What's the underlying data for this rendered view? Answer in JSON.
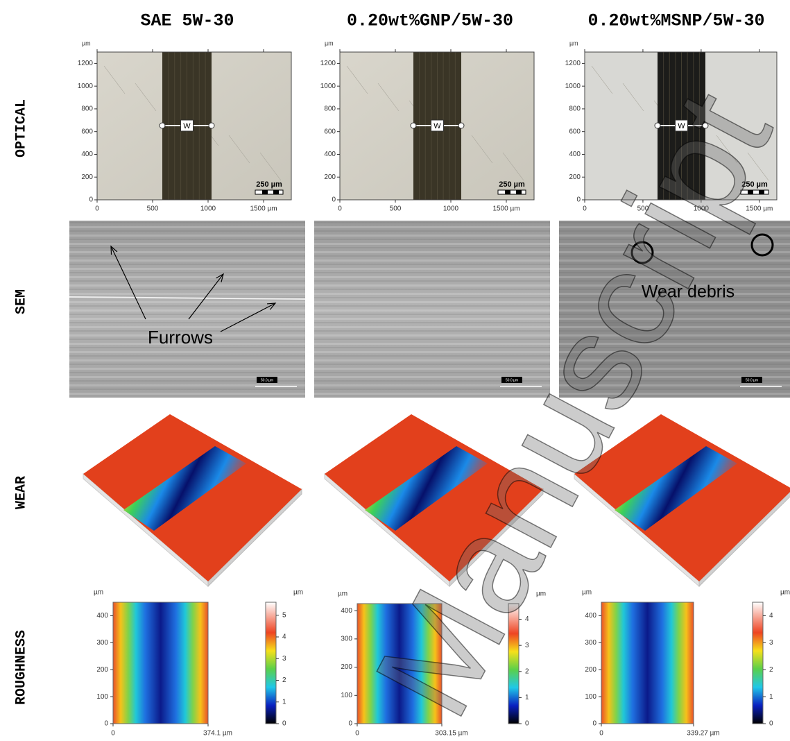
{
  "columns": [
    "SAE 5W-30",
    "0.20wt%GNP/5W-30",
    "0.20wt%MSNP/5W-30"
  ],
  "rows": [
    "OPTICAL",
    "SEM",
    "WEAR",
    "ROUGHNESS"
  ],
  "optical": [
    {
      "unit": "µm",
      "xlim": [
        0,
        1750
      ],
      "ylim": [
        0,
        1300
      ],
      "xticks": [
        0,
        500,
        1000,
        {
          "value": 1500,
          "label": "1500 µm"
        }
      ],
      "yticks": [
        0,
        200,
        400,
        600,
        800,
        1000,
        1200
      ],
      "marker": "W",
      "scale_bar": "250 µm"
    },
    {
      "unit": "µm",
      "xlim": [
        0,
        1750
      ],
      "ylim": [
        0,
        1300
      ],
      "xticks": [
        0,
        500,
        1000,
        {
          "value": 1500,
          "label": "1500 µm"
        }
      ],
      "yticks": [
        0,
        200,
        400,
        600,
        800,
        1000,
        1200
      ],
      "marker": "W",
      "scale_bar": "250 µm"
    },
    {
      "unit": "µm",
      "xlim": [
        0,
        1650
      ],
      "ylim": [
        0,
        1300
      ],
      "xticks": [
        0,
        500,
        1000,
        {
          "value": 1500,
          "label": "1500 µm"
        }
      ],
      "yticks": [
        0,
        200,
        400,
        600,
        800,
        1000,
        1200
      ],
      "marker": "W",
      "scale_bar": "250 µm"
    }
  ],
  "sem": [
    {
      "annotation": "Furrows",
      "scale_bar": "50.0 µm"
    },
    {
      "scale_bar": "50.0 µm"
    },
    {
      "annotation": "Wear debris",
      "scale_bar": "50.0 µm"
    }
  ],
  "roughness": [
    {
      "unit": "µm",
      "xlim": [
        0,
        374.1
      ],
      "ylim": [
        0,
        450
      ],
      "xticks": [
        0,
        {
          "value": 374.1,
          "label": "374.1 µm"
        }
      ],
      "yticks": [
        0,
        100,
        200,
        300,
        400
      ],
      "colorbar": {
        "unit": "µm",
        "lim": [
          0,
          5.6
        ],
        "ticks": [
          0,
          1,
          2,
          3,
          4,
          5
        ]
      }
    },
    {
      "unit": "µm",
      "xlim": [
        0,
        303.15
      ],
      "ylim": [
        0,
        425
      ],
      "xticks": [
        0,
        {
          "value": 303.15,
          "label": "303.15 µm"
        }
      ],
      "yticks": [
        0,
        100,
        200,
        300,
        400
      ],
      "colorbar": {
        "unit": "µm",
        "lim": [
          0,
          4.6
        ],
        "ticks": [
          0,
          1,
          2,
          3,
          4
        ]
      }
    },
    {
      "unit": "µm",
      "xlim": [
        0,
        339.27
      ],
      "ylim": [
        0,
        450
      ],
      "xticks": [
        0,
        {
          "value": 339.27,
          "label": "339.27 µm"
        }
      ],
      "yticks": [
        0,
        100,
        200,
        300,
        400
      ],
      "colorbar": {
        "unit": "µm",
        "lim": [
          0,
          4.5
        ],
        "ticks": [
          0,
          1,
          2,
          3,
          4
        ]
      }
    }
  ],
  "watermark": "Manuscript"
}
